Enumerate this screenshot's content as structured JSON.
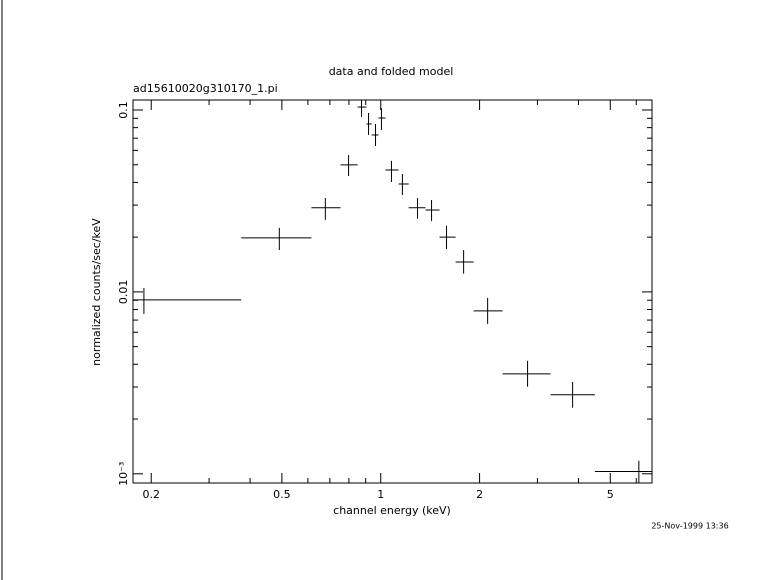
{
  "chart_data": {
    "type": "scatter",
    "title": "data and folded model",
    "subtitle": "ad15610020g310170_1.pi",
    "x_label": "channel energy (keV)",
    "y_label": "normalized counts/sec/keV",
    "timestamp": "25-Nov-1999 13:36",
    "log_x": true,
    "log_y": true,
    "color": "#000000",
    "xlim": [
      0.176,
      6.7
    ],
    "ylim": [
      0.00089,
      0.1135
    ],
    "xticks": [
      0.2,
      0.5,
      1,
      2,
      5
    ],
    "yticks": [
      {
        "value": 0.001,
        "label": "10⁻³"
      },
      0.01,
      0.1
    ],
    "xticks_minor": [
      0.3,
      0.4,
      0.6,
      0.7,
      0.8,
      0.9,
      3,
      4,
      6
    ],
    "yticks_minor": [
      0.002,
      0.003,
      0.004,
      0.005,
      0.006,
      0.007,
      0.008,
      0.009,
      0.02,
      0.03,
      0.04,
      0.05,
      0.06,
      0.07,
      0.08,
      0.09
    ],
    "x": [
      0.19,
      0.491,
      0.678,
      0.798,
      0.874,
      0.918,
      0.964,
      1.005,
      1.078,
      1.164,
      1.294,
      1.428,
      1.586,
      1.788,
      2.116,
      2.8,
      3.84,
      6.11
    ],
    "xmin": [
      0.176,
      0.376,
      0.615,
      0.754,
      0.85,
      0.905,
      0.938,
      0.984,
      1.034,
      1.133,
      1.216,
      1.368,
      1.51,
      1.69,
      1.918,
      2.35,
      3.29,
      4.49
    ],
    "xmax": [
      0.376,
      0.615,
      0.754,
      0.85,
      0.905,
      0.938,
      0.984,
      1.034,
      1.133,
      1.216,
      1.368,
      1.51,
      1.69,
      1.918,
      2.35,
      3.29,
      4.49,
      6.7
    ],
    "y": [
      0.00904,
      0.0198,
      0.029,
      0.0499,
      0.1038,
      0.0838,
      0.0729,
      0.0904,
      0.0468,
      0.0392,
      0.029,
      0.0282,
      0.02,
      0.0146,
      0.00787,
      0.00354,
      0.00272,
      0.00103
    ],
    "ymin": [
      0.00757,
      0.017,
      0.0249,
      0.0434,
      0.0916,
      0.0729,
      0.0634,
      0.0776,
      0.0402,
      0.0341,
      0.0252,
      0.0245,
      0.0172,
      0.0126,
      0.00667,
      0.00301,
      0.00231,
      0.00089
    ],
    "ymax": [
      0.0105,
      0.0225,
      0.0328,
      0.0566,
      0.1135,
      0.0963,
      0.0838,
      0.1026,
      0.0525,
      0.0445,
      0.0328,
      0.032,
      0.0231,
      0.017,
      0.00927,
      0.00418,
      0.0032,
      0.00118
    ]
  }
}
